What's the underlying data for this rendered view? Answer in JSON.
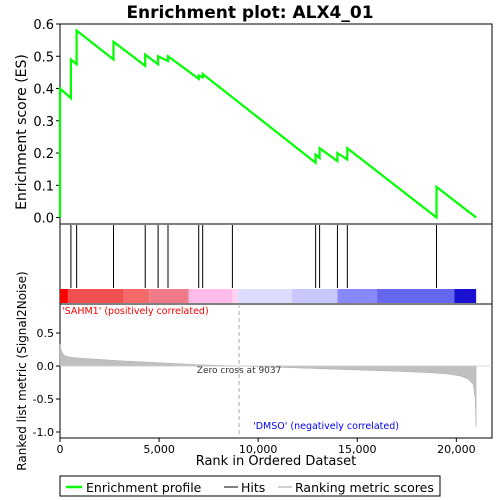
{
  "chart_data": {
    "type": "line",
    "title": "Enrichment plot: ALX4_01",
    "top_panel": {
      "ylabel": "Enrichment score (ES)",
      "ylim": [
        -0.02,
        0.6
      ],
      "yticks": [
        0.0,
        0.1,
        0.2,
        0.3,
        0.4,
        0.5,
        0.6
      ],
      "ytick_labels": [
        "0.0",
        "0.1",
        "0.2",
        "0.3",
        "0.4",
        "0.5",
        "0.6"
      ],
      "series": [
        {
          "name": "Enrichment profile",
          "color": "#00ff00",
          "x": [
            0,
            0,
            550,
            550,
            840,
            840,
            2700,
            2700,
            4300,
            4300,
            4950,
            4950,
            5450,
            5450,
            7000,
            7000,
            7200,
            7200,
            12900,
            12900,
            13100,
            13100,
            14000,
            14000,
            14500,
            14500,
            19000,
            19000,
            21000
          ],
          "y": [
            0.0,
            0.4,
            0.37,
            0.49,
            0.475,
            0.58,
            0.49,
            0.545,
            0.47,
            0.505,
            0.475,
            0.5,
            0.485,
            0.5,
            0.43,
            0.44,
            0.435,
            0.445,
            0.17,
            0.195,
            0.185,
            0.215,
            0.175,
            0.2,
            0.18,
            0.215,
            0.0,
            0.095,
            0.0
          ]
        }
      ]
    },
    "hits": {
      "positions": [
        550,
        840,
        2700,
        4300,
        4950,
        5450,
        7000,
        7200,
        8700,
        12900,
        13100,
        14000,
        14500,
        19000
      ]
    },
    "heat_bar": {
      "segments": [
        {
          "from": 0,
          "to": 400,
          "color": "#ff0000"
        },
        {
          "from": 400,
          "to": 3200,
          "color": "#f05050"
        },
        {
          "from": 3200,
          "to": 4500,
          "color": "#f46a6a"
        },
        {
          "from": 4500,
          "to": 6500,
          "color": "#f07a8a"
        },
        {
          "from": 6500,
          "to": 8700,
          "color": "#ffbbe8"
        },
        {
          "from": 8700,
          "to": 9000,
          "color": "#ffd4f0"
        },
        {
          "from": 9000,
          "to": 11700,
          "color": "#dcdcff"
        },
        {
          "from": 11700,
          "to": 14000,
          "color": "#c8c8ff"
        },
        {
          "from": 14000,
          "to": 16000,
          "color": "#8888ff"
        },
        {
          "from": 16000,
          "to": 19900,
          "color": "#6666ee"
        },
        {
          "from": 19900,
          "to": 21000,
          "color": "#1a10d0"
        }
      ]
    },
    "bottom_panel": {
      "ylabel": "Ranked list metric (Signal2Noise)",
      "xlabel": "Rank in Ordered Dataset",
      "ylim": [
        -1.0,
        1.0
      ],
      "yticks": [
        -1.0,
        -0.5,
        0.0,
        0.5
      ],
      "ytick_labels": [
        "-1.0",
        "-0.5",
        "0.0",
        "0.5"
      ],
      "xticks": [
        0,
        5000,
        10000,
        15000,
        20000
      ],
      "xtick_labels": [
        "0",
        "5,000",
        "10,000",
        "15,000",
        "20,000"
      ],
      "xlim": [
        0,
        21800
      ],
      "metric_curve": {
        "x": [
          0,
          50,
          150,
          300,
          600,
          1000,
          2000,
          3000,
          5000,
          7000,
          9037,
          11000,
          13000,
          15000,
          17000,
          18500,
          19500,
          20200,
          20600,
          20850,
          20950,
          21000
        ],
        "y": [
          0.33,
          0.25,
          0.18,
          0.15,
          0.13,
          0.12,
          0.1,
          0.08,
          0.05,
          0.02,
          0.0,
          -0.02,
          -0.04,
          -0.06,
          -0.08,
          -0.1,
          -0.12,
          -0.15,
          -0.2,
          -0.28,
          -0.5,
          -0.93
        ]
      },
      "zero_cross": 9037,
      "zero_cross_label": "Zero cross at 9037",
      "pos_label": "'SAHM1' (positively correlated)",
      "neg_label": "'DMSO' (negatively correlated)"
    },
    "legend": {
      "position": "bottom",
      "entries": [
        {
          "label": "Enrichment profile",
          "color": "#00ff00"
        },
        {
          "label": "Hits",
          "color": "#000000"
        },
        {
          "label": "Ranking metric scores",
          "color": "#c0c0c0"
        }
      ]
    },
    "colors": {
      "profile": "#00ff00",
      "metric_fill": "#c0c0c0",
      "pos_label": "#ff0000",
      "neg_label": "#0000ff"
    }
  }
}
